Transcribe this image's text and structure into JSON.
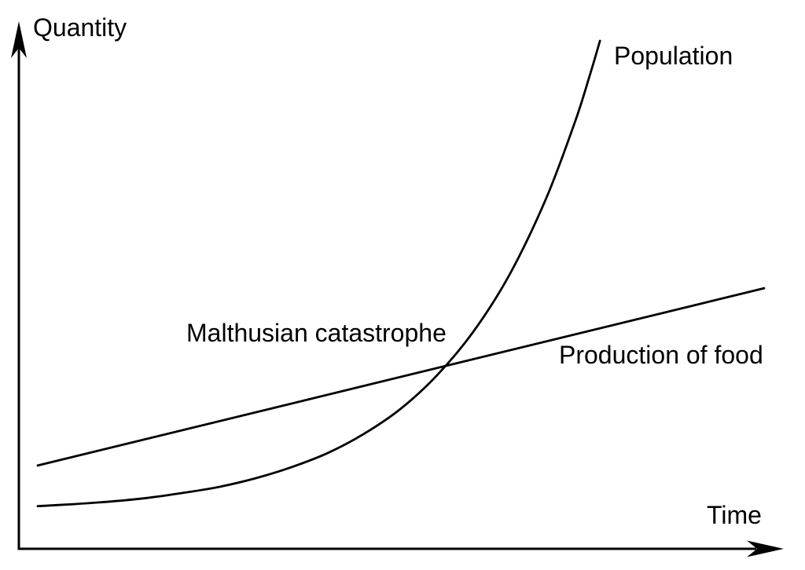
{
  "style": {
    "background": "#ffffff",
    "line_color": "#000000",
    "text_color": "#000000"
  },
  "chart_data": {
    "type": "line",
    "title": "",
    "xlabel": "Time",
    "ylabel": "Quantity",
    "xlim": [
      0,
      10
    ],
    "ylim": [
      0,
      10
    ],
    "grid": false,
    "tick_labels": "none",
    "legend_position": "inline-labels",
    "series": [
      {
        "name": "Population",
        "shape": "exponential",
        "points": [
          [
            0,
            0.84
          ],
          [
            0.5,
            0.88
          ],
          [
            1,
            0.93
          ],
          [
            1.5,
            1.0
          ],
          [
            2,
            1.1
          ],
          [
            2.5,
            1.22
          ],
          [
            3,
            1.39
          ],
          [
            3.5,
            1.61
          ],
          [
            4,
            1.89
          ],
          [
            4.5,
            2.27
          ],
          [
            5,
            2.76
          ],
          [
            5.5,
            3.42
          ],
          [
            6,
            4.28
          ],
          [
            6.5,
            5.41
          ],
          [
            7,
            6.9
          ],
          [
            7.4,
            8.42
          ],
          [
            7.6,
            9.32
          ],
          [
            7.74,
            10.0
          ]
        ]
      },
      {
        "name": "Production of food",
        "shape": "linear",
        "points": [
          [
            0,
            1.64
          ],
          [
            10,
            5.13
          ]
        ]
      }
    ],
    "annotations": [
      {
        "text": "Malthusian catastrophe",
        "x": 2.1,
        "y": 4.2,
        "anchor": "intersection of the two curves at approximately x=5.6, y=3.6"
      }
    ]
  }
}
